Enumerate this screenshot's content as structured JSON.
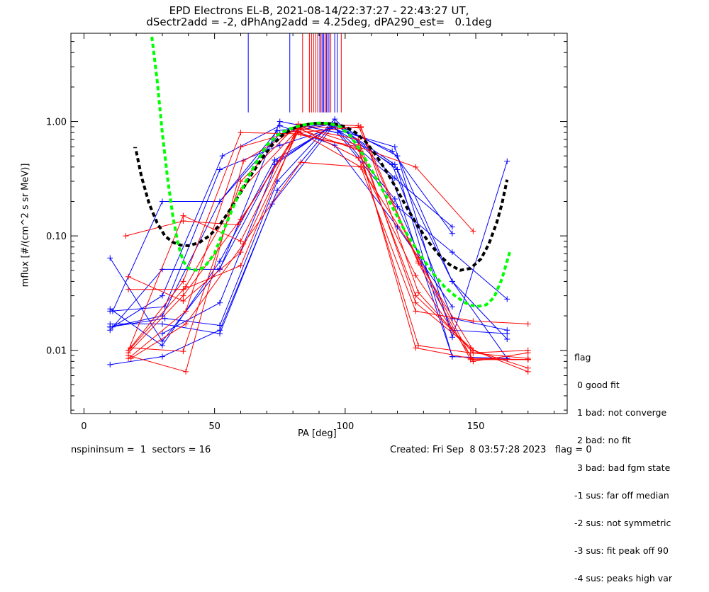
{
  "title_line1": "EPD Electrons EL-B, 2021-08-14/22:37:27 - 22:43:27 UT,",
  "title_line2": "dSectr2add = -2, dPhAng2add = 4.25deg, dPA290_est=   0.1deg",
  "footer_left": "nspininsum =  1  sectors = 16",
  "footer_right": "Created: Fri Sep  8 03:57:28 2023   flag = 0",
  "colors": {
    "red": "#ff0000",
    "blue": "#0000ff",
    "black": "#000000",
    "green": "#00ff00"
  },
  "chart_data": {
    "type": "line",
    "xlabel": "PA [deg]",
    "ylabel": "mflux [#/(cm^2 s sr MeV)]",
    "xlim": [
      -5,
      185
    ],
    "ylim": [
      0.0028,
      5.9
    ],
    "yscale": "log",
    "xticks": [
      0,
      50,
      100,
      150
    ],
    "yticks": [
      0.01,
      0.1,
      1.0
    ],
    "ytick_labels": [
      "0.01",
      "0.10",
      "1.00"
    ],
    "legend": {
      "placement": "outside-bottom-right",
      "title": "flag",
      "entries": [
        " 0 good fit",
        " 1 bad: not converge",
        " 2 bad: no fit",
        " 3 bad: bad fgm state",
        "-1 sus: far off median",
        "-2 sus: not symmetric",
        "-3 sus: fit peak off 90",
        "-4 sus: peaks high var"
      ]
    },
    "vlines": [
      {
        "x": 62.9,
        "ymin": 1.2,
        "color": "blue"
      },
      {
        "x": 78.8,
        "ymin": 1.2,
        "color": "blue"
      },
      {
        "x": 83.7,
        "ymin": 1.2,
        "color": "red"
      },
      {
        "x": 86.3,
        "ymin": 1.2,
        "color": "red"
      },
      {
        "x": 87.1,
        "ymin": 1.2,
        "color": "red"
      },
      {
        "x": 87.9,
        "ymin": 1.2,
        "color": "red"
      },
      {
        "x": 88.7,
        "ymin": 1.2,
        "color": "red"
      },
      {
        "x": 89.5,
        "ymin": 1.2,
        "color": "red"
      },
      {
        "x": 90.3,
        "ymin": 1.2,
        "color": "blue"
      },
      {
        "x": 90.8,
        "ymin": 1.2,
        "color": "red"
      },
      {
        "x": 91.3,
        "ymin": 1.2,
        "color": "blue"
      },
      {
        "x": 91.8,
        "ymin": 1.2,
        "color": "blue"
      },
      {
        "x": 92.3,
        "ymin": 1.2,
        "color": "red"
      },
      {
        "x": 92.8,
        "ymin": 1.2,
        "color": "blue"
      },
      {
        "x": 93.3,
        "ymin": 1.2,
        "color": "red"
      },
      {
        "x": 93.8,
        "ymin": 1.2,
        "color": "blue"
      },
      {
        "x": 94.5,
        "ymin": 1.2,
        "color": "red"
      },
      {
        "x": 96.0,
        "ymin": 1.2,
        "color": "blue"
      },
      {
        "x": 97.0,
        "ymin": 1.2,
        "color": "blue"
      },
      {
        "x": 98.5,
        "ymin": 1.2,
        "color": "red"
      }
    ],
    "series": [
      {
        "color": "blue",
        "points": [
          [
            10,
            0.0075
          ],
          [
            30,
            0.0088
          ],
          [
            52,
            0.015
          ],
          [
            72,
            0.19
          ],
          [
            96,
            0.95
          ],
          [
            120,
            0.38
          ],
          [
            141,
            0.0088
          ],
          [
            162,
            0.0085
          ]
        ]
      },
      {
        "color": "blue",
        "points": [
          [
            10,
            0.064
          ],
          [
            30,
            0.012
          ],
          [
            52,
            0.052
          ],
          [
            73,
            0.42
          ],
          [
            95,
            0.92
          ],
          [
            118,
            0.32
          ],
          [
            141,
            0.0088
          ]
        ]
      },
      {
        "color": "blue",
        "points": [
          [
            10,
            0.023
          ],
          [
            30,
            0.011
          ],
          [
            52,
            0.06
          ],
          [
            73,
            0.46
          ],
          [
            95,
            0.9
          ],
          [
            118,
            0.42
          ],
          [
            141,
            0.019
          ],
          [
            162,
            0.015
          ]
        ]
      },
      {
        "color": "blue",
        "points": [
          [
            10,
            0.017
          ],
          [
            30,
            0.017
          ],
          [
            52,
            0.014
          ],
          [
            74,
            0.25
          ],
          [
            94,
            0.88
          ],
          [
            119,
            0.6
          ],
          [
            141,
            0.013
          ],
          [
            162,
            0.45
          ]
        ]
      },
      {
        "color": "blue",
        "points": [
          [
            10,
            0.015
          ],
          [
            30,
            0.051
          ],
          [
            52,
            0.051
          ],
          [
            75,
            1.0
          ],
          [
            97,
            0.8
          ],
          [
            120,
            0.18
          ],
          [
            141,
            0.072
          ],
          [
            162,
            0.028
          ]
        ]
      },
      {
        "color": "blue",
        "points": [
          [
            10,
            0.016
          ],
          [
            30,
            0.02
          ],
          [
            52,
            0.2
          ],
          [
            74,
            0.83
          ],
          [
            96,
            0.97
          ],
          [
            120,
            0.5
          ],
          [
            141,
            0.04
          ],
          [
            162,
            0.0085
          ]
        ]
      },
      {
        "color": "blue",
        "points": [
          [
            11,
            0.022
          ],
          [
            30,
            0.2
          ],
          [
            52,
            0.2
          ],
          [
            75,
            0.78
          ],
          [
            95,
            0.95
          ],
          [
            119,
            0.21
          ],
          [
            141,
            0.015
          ],
          [
            162,
            0.014
          ]
        ]
      },
      {
        "color": "blue",
        "points": [
          [
            10,
            0.016
          ],
          [
            31,
            0.019
          ],
          [
            52,
            0.0165
          ],
          [
            74,
            0.3
          ],
          [
            96,
            1.05
          ],
          [
            119,
            0.32
          ],
          [
            141,
            0.12
          ]
        ]
      },
      {
        "color": "blue",
        "points": [
          [
            11,
            0.016
          ],
          [
            30,
            0.03
          ],
          [
            53,
            0.5
          ],
          [
            75,
            0.92
          ],
          [
            96,
            0.62
          ],
          [
            120,
            0.12
          ],
          [
            141,
            0.024
          ]
        ]
      },
      {
        "color": "blue",
        "points": [
          [
            10,
            0.022
          ],
          [
            31,
            0.024
          ],
          [
            52,
            0.38
          ],
          [
            75,
            0.62
          ],
          [
            97,
            0.9
          ],
          [
            118,
            0.55
          ],
          [
            141,
            0.105
          ]
        ]
      },
      {
        "color": "blue",
        "points": [
          [
            30,
            0.014
          ],
          [
            52,
            0.026
          ],
          [
            74,
            0.45
          ],
          [
            96,
            0.95
          ],
          [
            119,
            0.42
          ],
          [
            141,
            0.04
          ],
          [
            162,
            0.0125
          ]
        ]
      },
      {
        "color": "red",
        "points": [
          [
            17,
            0.01
          ],
          [
            38,
            0.04
          ],
          [
            60,
            0.8
          ],
          [
            83,
            0.78
          ],
          [
            105,
            0.58
          ],
          [
            128,
            0.011
          ],
          [
            148,
            0.0095
          ],
          [
            170,
            0.0085
          ]
        ]
      },
      {
        "color": "red",
        "points": [
          [
            17,
            0.0085
          ],
          [
            39,
            0.022
          ],
          [
            60,
            0.6
          ],
          [
            83,
            0.85
          ],
          [
            106,
            0.55
          ],
          [
            127,
            0.03
          ],
          [
            149,
            0.01
          ],
          [
            170,
            0.007
          ]
        ]
      },
      {
        "color": "red",
        "points": [
          [
            17,
            0.009
          ],
          [
            39,
            0.0065
          ],
          [
            61,
            0.45
          ],
          [
            82,
            0.88
          ],
          [
            105,
            0.48
          ],
          [
            127,
            0.045
          ],
          [
            149,
            0.0083
          ],
          [
            170,
            0.0083
          ]
        ]
      },
      {
        "color": "red",
        "points": [
          [
            18,
            0.0105
          ],
          [
            38,
            0.0098
          ],
          [
            60,
            0.3
          ],
          [
            82,
            0.95
          ],
          [
            105,
            0.92
          ],
          [
            128,
            0.058
          ],
          [
            148,
            0.0083
          ],
          [
            170,
            0.0083
          ]
        ]
      },
      {
        "color": "red",
        "points": [
          [
            17,
            0.034
          ],
          [
            38,
            0.034
          ],
          [
            60,
            0.055
          ],
          [
            82,
            0.88
          ],
          [
            105,
            0.7
          ],
          [
            127,
            0.026
          ],
          [
            148,
            0.0105
          ]
        ]
      },
      {
        "color": "red",
        "points": [
          [
            17,
            0.044
          ],
          [
            38,
            0.027
          ],
          [
            60,
            0.072
          ],
          [
            82,
            0.82
          ],
          [
            106,
            0.4
          ],
          [
            127,
            0.022
          ],
          [
            149,
            0.018
          ],
          [
            170,
            0.017
          ]
        ]
      },
      {
        "color": "red",
        "points": [
          [
            16,
            0.1
          ],
          [
            38,
            0.135
          ],
          [
            59,
            0.125
          ],
          [
            81,
            0.78
          ],
          [
            105,
            0.6
          ],
          [
            127,
            0.4
          ],
          [
            149,
            0.11
          ]
        ]
      },
      {
        "color": "red",
        "points": [
          [
            17,
            0.01
          ],
          [
            38,
            0.15
          ],
          [
            60,
            0.09
          ],
          [
            82,
            0.9
          ],
          [
            106,
            0.88
          ],
          [
            128,
            0.06
          ],
          [
            149,
            0.01
          ],
          [
            170,
            0.0065
          ]
        ]
      },
      {
        "color": "red",
        "points": [
          [
            18,
            0.0085
          ],
          [
            39,
            0.017
          ],
          [
            61,
            0.085
          ],
          [
            83,
            0.44
          ],
          [
            106,
            0.4
          ],
          [
            128,
            0.065
          ],
          [
            149,
            0.008
          ],
          [
            170,
            0.0095
          ]
        ]
      },
      {
        "color": "red",
        "points": [
          [
            17,
            0.0095
          ],
          [
            38,
            0.03
          ],
          [
            60,
            0.14
          ],
          [
            82,
            0.8
          ],
          [
            106,
            0.9
          ],
          [
            128,
            0.032
          ],
          [
            149,
            0.0095
          ],
          [
            170,
            0.01
          ]
        ]
      },
      {
        "color": "red",
        "points": [
          [
            18,
            0.0105
          ],
          [
            39,
            0.036
          ],
          [
            60,
            0.25
          ],
          [
            83,
            0.9
          ],
          [
            105,
            0.62
          ],
          [
            127,
            0.0105
          ],
          [
            148,
            0.0085
          ],
          [
            170,
            0.0083
          ]
        ]
      }
    ],
    "fit_curves": [
      {
        "color": "black",
        "points": [
          [
            20,
            0.55
          ],
          [
            22,
            0.33
          ],
          [
            25,
            0.19
          ],
          [
            28,
            0.13
          ],
          [
            31,
            0.1
          ],
          [
            34,
            0.088
          ],
          [
            37,
            0.083
          ],
          [
            40,
            0.082
          ],
          [
            44,
            0.087
          ],
          [
            48,
            0.1
          ],
          [
            52,
            0.125
          ],
          [
            56,
            0.17
          ],
          [
            60,
            0.24
          ],
          [
            64,
            0.34
          ],
          [
            68,
            0.47
          ],
          [
            72,
            0.62
          ],
          [
            76,
            0.76
          ],
          [
            80,
            0.87
          ],
          [
            84,
            0.93
          ],
          [
            88,
            0.96
          ],
          [
            92,
            0.965
          ],
          [
            96,
            0.95
          ],
          [
            100,
            0.9
          ],
          [
            104,
            0.8
          ],
          [
            108,
            0.66
          ],
          [
            112,
            0.5
          ],
          [
            116,
            0.36
          ],
          [
            120,
            0.25
          ],
          [
            124,
            0.17
          ],
          [
            128,
            0.12
          ],
          [
            132,
            0.088
          ],
          [
            136,
            0.068
          ],
          [
            140,
            0.056
          ],
          [
            144,
            0.05
          ],
          [
            148,
            0.052
          ],
          [
            152,
            0.063
          ],
          [
            155,
            0.085
          ],
          [
            158,
            0.13
          ],
          [
            160,
            0.19
          ],
          [
            162,
            0.31
          ]
        ]
      },
      {
        "color": "green",
        "points": [
          [
            26,
            5.5
          ],
          [
            28,
            2.3
          ],
          [
            30,
            0.8
          ],
          [
            32,
            0.32
          ],
          [
            34,
            0.15
          ],
          [
            36,
            0.085
          ],
          [
            38,
            0.06
          ],
          [
            40,
            0.052
          ],
          [
            43,
            0.05
          ],
          [
            46,
            0.053
          ],
          [
            50,
            0.07
          ],
          [
            54,
            0.12
          ],
          [
            58,
            0.2
          ],
          [
            62,
            0.3
          ],
          [
            66,
            0.44
          ],
          [
            70,
            0.62
          ],
          [
            74,
            0.76
          ],
          [
            78,
            0.85
          ],
          [
            82,
            0.91
          ],
          [
            86,
            0.95
          ],
          [
            90,
            0.97
          ],
          [
            94,
            0.96
          ],
          [
            98,
            0.9
          ],
          [
            102,
            0.75
          ],
          [
            106,
            0.55
          ],
          [
            110,
            0.38
          ],
          [
            114,
            0.26
          ],
          [
            118,
            0.18
          ],
          [
            122,
            0.12
          ],
          [
            126,
            0.085
          ],
          [
            130,
            0.062
          ],
          [
            134,
            0.046
          ],
          [
            138,
            0.036
          ],
          [
            142,
            0.03
          ],
          [
            146,
            0.026
          ],
          [
            150,
            0.024
          ],
          [
            154,
            0.025
          ],
          [
            157,
            0.029
          ],
          [
            160,
            0.042
          ],
          [
            163,
            0.072
          ]
        ]
      }
    ]
  }
}
